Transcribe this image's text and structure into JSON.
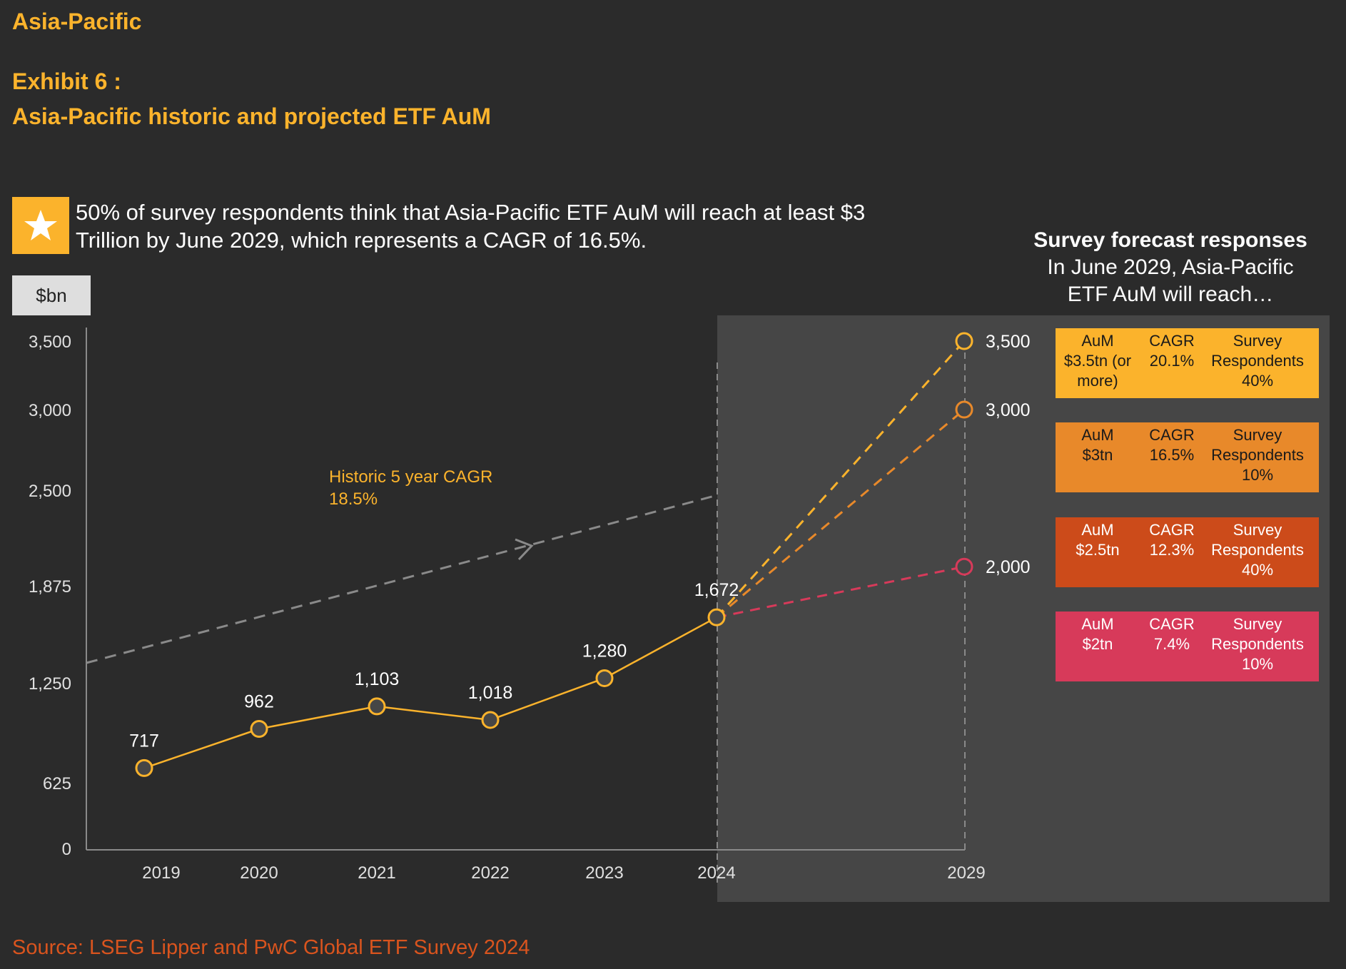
{
  "header": {
    "region": "Asia-Pacific",
    "exhibit": "Exhibit 6 :",
    "subtitle": "Asia-Pacific historic and projected ETF AuM"
  },
  "callout": {
    "icon": "star-icon",
    "text": "50% of survey respondents think that Asia-Pacific ETF AuM will reach at least $3 Trillion by June 2029, which represents a CAGR of 16.5%."
  },
  "forecast_panel": {
    "title": "Survey forecast responses",
    "subtitle": "In June 2029, Asia-Pacific ETF AuM will reach…",
    "boxes": [
      {
        "aum_label": "AuM",
        "aum_value": "$3.5tn (or more)",
        "cagr_label": "CAGR",
        "cagr_value": "20.1%",
        "resp_label": "Survey Respondents",
        "resp_value": "40%",
        "color": "#fbb32c",
        "text_color": "#1a1a1a"
      },
      {
        "aum_label": "AuM",
        "aum_value": "$3tn",
        "cagr_label": "CAGR",
        "cagr_value": "16.5%",
        "resp_label": "Survey Respondents",
        "resp_value": "10%",
        "color": "#e8892a",
        "text_color": "#1a1a1a"
      },
      {
        "aum_label": "AuM",
        "aum_value": "$2.5tn",
        "cagr_label": "CAGR",
        "cagr_value": "12.3%",
        "resp_label": "Survey Respondents",
        "resp_value": "40%",
        "color": "#cc4b1a",
        "text_color": "#ffffff"
      },
      {
        "aum_label": "AuM",
        "aum_value": "$2tn",
        "cagr_label": "CAGR",
        "cagr_value": "7.4%",
        "resp_label": "Survey Respondents",
        "resp_value": "10%",
        "color": "#d73a5a",
        "text_color": "#ffffff"
      }
    ]
  },
  "source": "Source: LSEG Lipper and PwC Global ETF Survey 2024",
  "chart_data": {
    "type": "line",
    "title": "Asia-Pacific historic and projected ETF AuM",
    "ylabel": "$bn",
    "xlabel": "",
    "yticks": [
      0,
      625,
      1250,
      1875,
      2500,
      3000,
      3500
    ],
    "ytick_labels": [
      "0",
      "625",
      "1,250",
      "1,875",
      "2,500",
      "3,000",
      "3,500"
    ],
    "ylim": [
      0,
      3500
    ],
    "grid": false,
    "x": [
      "2019",
      "2020",
      "2021",
      "2022",
      "2023",
      "2024",
      "2029"
    ],
    "series": [
      {
        "name": "Historic AuM",
        "style": "solid",
        "color": "#fbb32c",
        "x": [
          "2019",
          "2020",
          "2021",
          "2022",
          "2023",
          "2024"
        ],
        "values": [
          717,
          962,
          1103,
          1018,
          1280,
          1672
        ],
        "labels": [
          "717",
          "962",
          "1,103",
          "1,018",
          "1,280",
          "1,672"
        ]
      },
      {
        "name": "Forecast $3.5tn",
        "style": "dashed",
        "color": "#fbb32c",
        "x": [
          "2024",
          "2029"
        ],
        "values": [
          1672,
          3500
        ],
        "end_label": "3,500"
      },
      {
        "name": "Forecast $3tn",
        "style": "dashed",
        "color": "#e8892a",
        "x": [
          "2024",
          "2029"
        ],
        "values": [
          1672,
          3000
        ],
        "end_label": "3,000"
      },
      {
        "name": "Forecast $2tn",
        "style": "dashed",
        "color": "#d73a5a",
        "x": [
          "2024",
          "2029"
        ],
        "values": [
          1672,
          2000
        ],
        "end_label": "2,000"
      }
    ],
    "annotations": [
      {
        "text": "Historic 5 year CAGR",
        "value": "18.5%",
        "type": "trend-arrow",
        "color": "#fbb32c"
      }
    ]
  }
}
